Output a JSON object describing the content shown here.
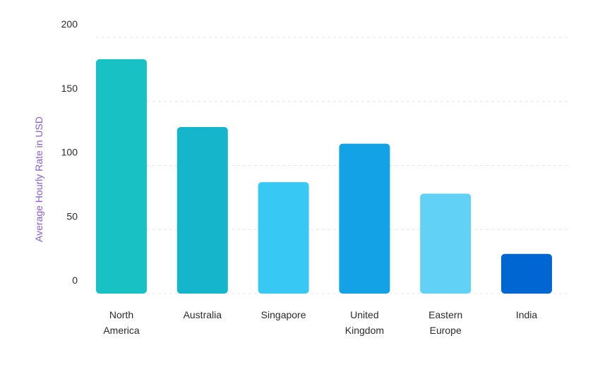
{
  "chart_data": {
    "type": "bar",
    "title": "",
    "xlabel": "",
    "ylabel": "Average Hourly Rate in USD",
    "categories": [
      [
        "North",
        "America"
      ],
      [
        "Australia"
      ],
      [
        "Singapore"
      ],
      [
        "United",
        "Kingdom"
      ],
      [
        "Eastern",
        "Europe"
      ],
      [
        "India"
      ]
    ],
    "values": [
      183,
      130,
      87,
      117,
      78,
      31
    ],
    "colors": [
      "#17c1c4",
      "#15b5cc",
      "#37c8f3",
      "#13a2e6",
      "#61d1f5",
      "#0066d2"
    ],
    "ylim": [
      0,
      200
    ],
    "yticks": [
      {
        "value": 0,
        "label": "0"
      },
      {
        "value": 50,
        "label": "50"
      },
      {
        "value": 100,
        "label": "100"
      },
      {
        "value": 150,
        "label": "150"
      },
      {
        "value": 200,
        "label": "200"
      }
    ],
    "grid": true,
    "ylabel_color": "#8a5cd6"
  }
}
